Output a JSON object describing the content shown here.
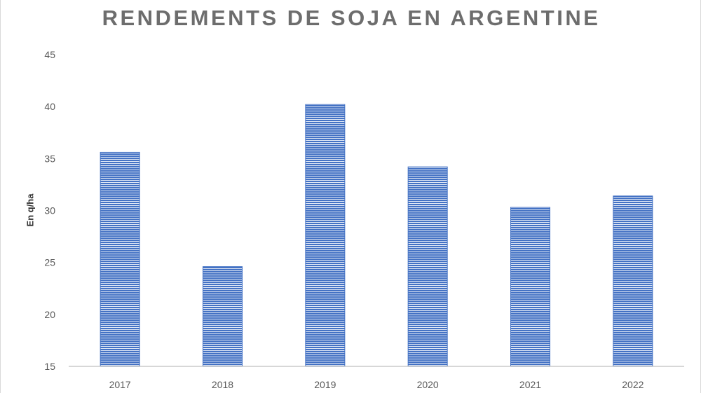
{
  "chart_data": {
    "type": "bar",
    "title": "RENDEMENTS DE SOJA EN ARGENTINE",
    "xlabel": "",
    "ylabel": "En q/ha",
    "categories": [
      "2017",
      "2018",
      "2019",
      "2020",
      "2021",
      "2022"
    ],
    "values": [
      35.6,
      24.6,
      40.2,
      34.2,
      30.3,
      31.4
    ],
    "ylim": [
      15,
      45
    ],
    "yticks": [
      15,
      20,
      25,
      30,
      35,
      40,
      45
    ],
    "grid": false,
    "legend": "none",
    "bar_color": "#4472c4",
    "bar_fill": "horizontal-stripes"
  }
}
